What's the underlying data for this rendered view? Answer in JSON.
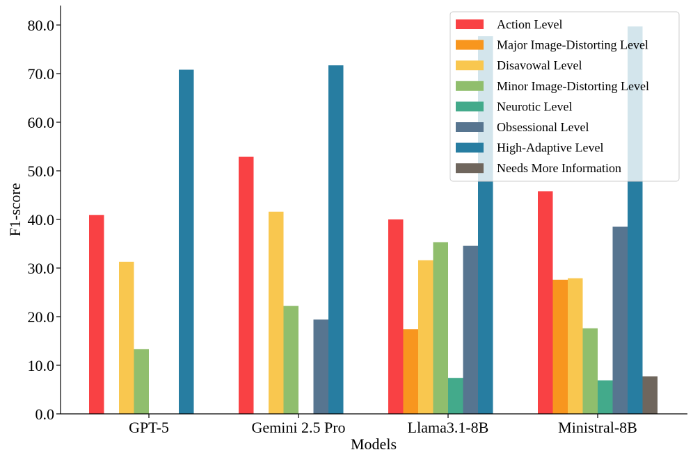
{
  "chart_data": {
    "type": "bar",
    "title": "",
    "xlabel": "Models",
    "ylabel": "F1-score",
    "ylim": [
      0,
      84
    ],
    "yticks": [
      "0.0",
      "10.0",
      "20.0",
      "30.0",
      "40.0",
      "50.0",
      "60.0",
      "70.0",
      "80.0"
    ],
    "categories": [
      "GPT-5",
      "Gemini 2.5 Pro",
      "Llama3.1-8B",
      "Ministral-8B"
    ],
    "legend_position": "top-right",
    "series": [
      {
        "name": "Action Level",
        "color": "#f94144",
        "values": [
          40.9,
          52.9,
          40.0,
          45.8
        ]
      },
      {
        "name": "Major Image-Distorting Level",
        "color": "#f8961e",
        "values": [
          0,
          0,
          17.4,
          27.6
        ]
      },
      {
        "name": "Disavowal Level",
        "color": "#f9c74f",
        "values": [
          31.3,
          41.6,
          31.6,
          27.9
        ]
      },
      {
        "name": "Minor Image-Distorting Level",
        "color": "#90be6d",
        "values": [
          13.3,
          22.2,
          35.3,
          17.6
        ]
      },
      {
        "name": "Neurotic Level",
        "color": "#43aa8b",
        "values": [
          0,
          0,
          7.4,
          6.9
        ]
      },
      {
        "name": "Obsessional Level",
        "color": "#577590",
        "values": [
          0,
          19.4,
          34.6,
          38.5
        ]
      },
      {
        "name": "High-Adaptive Level",
        "color": "#277da1",
        "values": [
          70.8,
          71.7,
          77.7,
          79.7
        ]
      },
      {
        "name": "Needs More Information",
        "color": "#6f665d",
        "values": [
          0,
          0,
          0,
          7.7
        ]
      }
    ]
  }
}
